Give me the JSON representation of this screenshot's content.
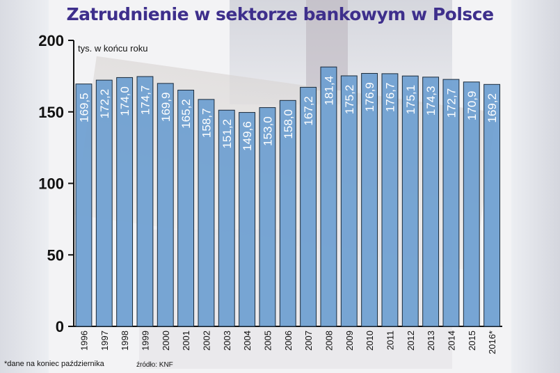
{
  "chart_data": {
    "type": "bar",
    "title": "Zatrudnienie w sektorze bankowym  w Polsce",
    "subtitle": "tys. w końcu roku",
    "xlabel": "",
    "ylabel": "",
    "categories": [
      "1996",
      "1997",
      "1998",
      "1999",
      "2000",
      "2001",
      "2002",
      "2003",
      "2004",
      "2005",
      "2006",
      "2007",
      "2008",
      "2009",
      "2010",
      "2011",
      "2012",
      "2013",
      "2014",
      "2015",
      "2016*"
    ],
    "values": [
      169.5,
      172.2,
      174.0,
      174.7,
      169.9,
      165.2,
      158.7,
      151.2,
      149.6,
      153.0,
      158.0,
      167.2,
      181.4,
      175.2,
      176.9,
      176.7,
      175.1,
      174.3,
      172.7,
      170.9,
      169.2
    ],
    "data_labels": [
      "169,5",
      "172,2",
      "174,0",
      "174,7",
      "169,9",
      "165,2",
      "158,7",
      "151,2",
      "149,6",
      "153,0",
      "158,0",
      "167,2",
      "181,4",
      "175,2",
      "176,9",
      "176,7",
      "175,1",
      "174,3",
      "172,7",
      "170,9",
      "169,2"
    ],
    "ylim": [
      0,
      200
    ],
    "yticks": [
      0,
      50,
      100,
      150,
      200
    ],
    "grid": false,
    "legend": "none",
    "bar_color": "#6c9ed0",
    "footnote": "*dane na koniec października",
    "source": "źródło: KNF"
  }
}
